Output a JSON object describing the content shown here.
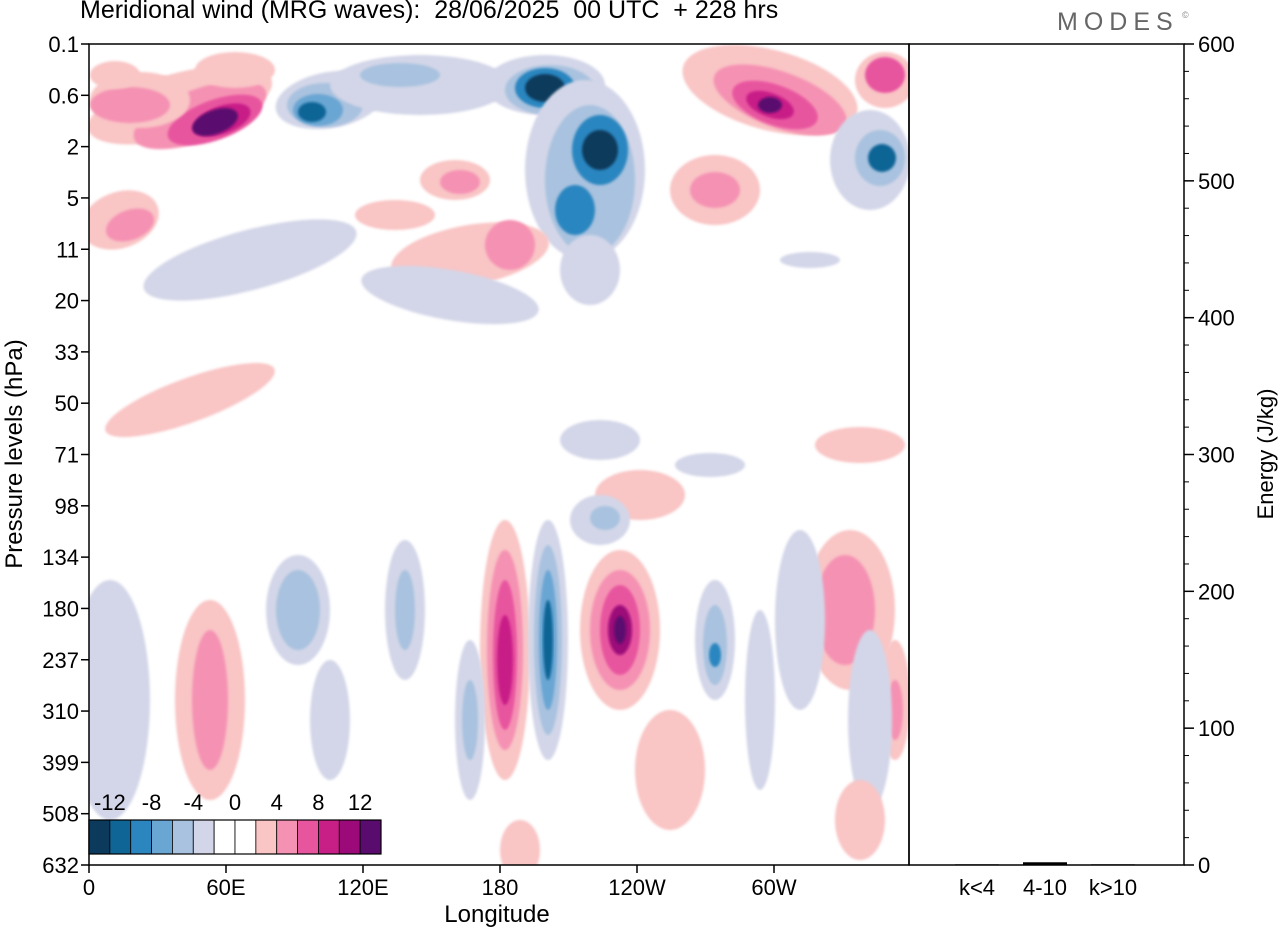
{
  "title": "Meridional wind (MRG waves):  28/06/2025  00 UTC  + 228 hrs",
  "logo": {
    "text": "MODES",
    "mark": "©"
  },
  "colors": {
    "levels": [
      "#0b3a5c",
      "#0f6596",
      "#2b86c0",
      "#6aa6d3",
      "#a9c2df",
      "#d3d6e8",
      "#ffffff",
      "#ffffff",
      "#f9c5c5",
      "#f592b3",
      "#e8559f",
      "#c81f87",
      "#9c0a79",
      "#5a0b6e"
    ]
  },
  "chart_data": [
    {
      "type": "heatmap",
      "title": "Meridional wind (MRG waves):  28/06/2025  00 UTC  + 228 hrs",
      "xlabel": "Longitude",
      "ylabel": "Pressure levels (hPa)",
      "x_ticks": [
        "0",
        "60E",
        "120E",
        "180",
        "120W",
        "60W"
      ],
      "y_ticks": [
        "0.1",
        "0.6",
        "2",
        "5",
        "11",
        "20",
        "33",
        "50",
        "71",
        "98",
        "134",
        "180",
        "237",
        "310",
        "399",
        "508",
        "632"
      ],
      "colorbar": {
        "labels": [
          "-12",
          "-8",
          "-4",
          "0",
          "4",
          "8",
          "12"
        ],
        "bin_edges": [
          -14,
          -12,
          -10,
          -8,
          -6,
          -4,
          -2,
          0,
          2,
          4,
          6,
          8,
          10,
          12,
          14
        ]
      }
    },
    {
      "type": "bar",
      "ylabel": "Energy (J/kg)",
      "categories": [
        "k<4",
        "4-10",
        "k>10"
      ],
      "values": [
        0.5,
        2,
        0.5
      ],
      "ylim": [
        0,
        600
      ],
      "y_ticks": [
        "0",
        "100",
        "200",
        "300",
        "400",
        "500",
        "600"
      ]
    }
  ]
}
